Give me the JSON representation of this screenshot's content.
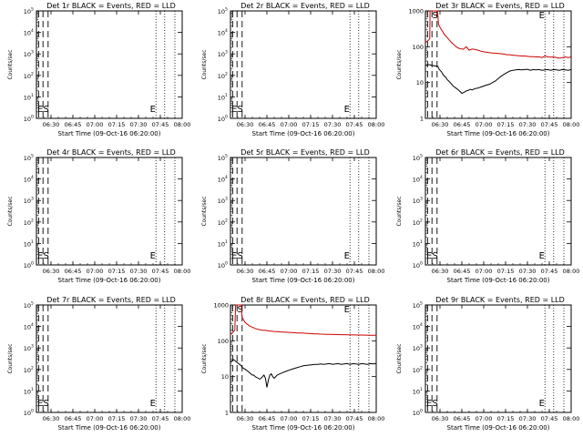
{
  "chart_data": [
    {
      "type": "line",
      "title": "Det 1r BLACK = Events, RED = LLD",
      "ylabel": "Counts/sec",
      "xlabel": "Start Time (09-Oct-16 06:20:00)",
      "log": "exponent",
      "series": []
    },
    {
      "type": "line",
      "title": "Det 2r BLACK = Events, RED = LLD",
      "ylabel": "Counts/sec",
      "xlabel": "Start Time (09-Oct-16 06:20:00)",
      "log": "exponent",
      "series": []
    },
    {
      "type": "line",
      "title": "Det 3r BLACK = Events, RED = LLD",
      "ylabel": "Counts/sec",
      "xlabel": "Start Time (09-Oct-16 06:20:00)",
      "log": "numeric",
      "series": [
        {
          "color": "#000000",
          "x": [
            0,
            1,
            2,
            3,
            8.6,
            9,
            10,
            11,
            12,
            13,
            14,
            15,
            16,
            17,
            18,
            19,
            20,
            21,
            22,
            23,
            24,
            25,
            26,
            27,
            28,
            29,
            30,
            31,
            32,
            34,
            36,
            38,
            40,
            42,
            44,
            46,
            48,
            50,
            52,
            54,
            56,
            58,
            60,
            62,
            64,
            66,
            68,
            70,
            72,
            74,
            76,
            78,
            80,
            82,
            84,
            86,
            88,
            90,
            92,
            94,
            96,
            98,
            100
          ],
          "y": [
            30,
            31,
            32,
            31,
            28,
            25,
            22,
            20,
            17,
            15,
            14,
            12,
            11,
            10,
            9,
            8,
            7.5,
            7,
            6.5,
            6,
            5.5,
            5,
            5.2,
            5.5,
            5.8,
            6,
            6.2,
            6.5,
            6.2,
            6.8,
            7,
            7.5,
            8,
            8.5,
            9,
            10,
            11,
            13,
            15,
            17,
            19,
            21,
            22,
            22.5,
            23,
            22.5,
            23,
            23.5,
            22,
            23,
            22.5,
            23,
            22,
            22.5,
            23,
            22,
            23,
            22.5,
            22,
            23,
            22.5,
            22,
            23
          ]
        },
        {
          "color": "#cc0000",
          "x": [
            0,
            1,
            2,
            3,
            3.2,
            8.3,
            9,
            10,
            11,
            12,
            13,
            14,
            15,
            16,
            17,
            18,
            19,
            20,
            21,
            22,
            23,
            24,
            26,
            28,
            30,
            32,
            34,
            36,
            38,
            40,
            42,
            44,
            46,
            48,
            50,
            52,
            54,
            56,
            58,
            60,
            62,
            64,
            66,
            68,
            70,
            72,
            74,
            76,
            78,
            80,
            82,
            84,
            86,
            88,
            90,
            92,
            94,
            96,
            98,
            100
          ],
          "y": [
            130,
            140,
            150,
            170,
            1000,
            1000,
            420,
            350,
            300,
            260,
            220,
            200,
            180,
            160,
            145,
            130,
            120,
            110,
            100,
            95,
            90,
            88,
            85,
            100,
            80,
            86,
            84,
            80,
            75,
            72,
            70,
            68,
            67,
            66,
            65,
            64,
            62,
            60,
            60,
            58,
            57,
            56,
            55,
            55,
            54,
            53,
            53,
            52,
            52,
            50,
            55,
            52,
            51,
            52,
            50,
            48,
            50,
            52,
            50,
            52
          ]
        }
      ]
    },
    {
      "type": "line",
      "title": "Det 4r BLACK = Events, RED = LLD",
      "ylabel": "Counts/sec",
      "xlabel": "Start Time (09-Oct-16 06:20:00)",
      "log": "exponent",
      "series": []
    },
    {
      "type": "line",
      "title": "Det 5r BLACK = Events, RED = LLD",
      "ylabel": "Counts/sec",
      "xlabel": "Start Time (09-Oct-16 06:20:00)",
      "log": "exponent",
      "series": []
    },
    {
      "type": "line",
      "title": "Det 6r BLACK = Events, RED = LLD",
      "ylabel": "Counts/sec",
      "xlabel": "Start Time (09-Oct-16 06:20:00)",
      "log": "exponent",
      "series": []
    },
    {
      "type": "line",
      "title": "Det 7r BLACK = Events, RED = LLD",
      "ylabel": "Counts/sec",
      "xlabel": "Start Time (09-Oct-16 06:20:00)",
      "log": "exponent",
      "series": []
    },
    {
      "type": "line",
      "title": "Det 8r BLACK = Events, RED = LLD",
      "ylabel": "Counts/sec",
      "xlabel": "Start Time (09-Oct-16 06:20:00)",
      "log": "numeric",
      "series": [
        {
          "color": "#000000",
          "x": [
            0,
            1,
            2,
            3,
            7.5,
            8,
            9,
            10,
            11,
            12,
            13,
            14,
            15,
            16,
            17,
            18,
            19,
            20,
            21,
            22,
            23,
            24,
            25,
            26,
            27,
            28,
            29,
            30,
            32,
            34,
            36,
            38,
            40,
            42,
            44,
            46,
            48,
            50,
            52,
            54,
            56,
            58,
            60,
            62,
            64,
            66,
            68,
            70,
            72,
            74,
            76,
            78,
            80,
            82,
            84,
            86,
            88,
            90,
            92,
            94,
            96,
            98,
            100
          ],
          "y": [
            25,
            27,
            30,
            28,
            20,
            18,
            17,
            16,
            15,
            14,
            13,
            12,
            11,
            11,
            10,
            9.5,
            9,
            8.5,
            9,
            10,
            11,
            9,
            5,
            8,
            11,
            12,
            10,
            9,
            11,
            12,
            13,
            14,
            15,
            16,
            17,
            18,
            19,
            20,
            20.5,
            21,
            21.5,
            22,
            22,
            22.5,
            22,
            22.5,
            23,
            22,
            22.5,
            23,
            22,
            22.5,
            23,
            22,
            23,
            22.5,
            22,
            23,
            22.5,
            22,
            23,
            22.5,
            23
          ]
        },
        {
          "color": "#cc0000",
          "x": [
            0,
            1,
            2,
            3,
            3.5,
            7.5,
            8,
            9,
            10,
            11,
            12,
            13,
            14,
            15,
            16,
            17,
            18,
            19,
            20,
            21,
            22,
            23,
            24,
            26,
            28,
            30,
            32,
            34,
            36,
            38,
            40,
            42,
            44,
            46,
            48,
            50,
            52,
            54,
            56,
            58,
            60,
            62,
            64,
            66,
            68,
            70,
            72,
            74,
            76,
            78,
            80,
            82,
            84,
            86,
            88,
            90,
            92,
            94,
            96,
            98,
            100
          ],
          "y": [
            150,
            160,
            180,
            200,
            1000,
            1000,
            450,
            380,
            330,
            300,
            280,
            260,
            250,
            240,
            230,
            220,
            215,
            210,
            205,
            200,
            198,
            196,
            195,
            190,
            185,
            182,
            180,
            178,
            176,
            174,
            172,
            170,
            168,
            166,
            165,
            164,
            162,
            160,
            158,
            156,
            155,
            154,
            153,
            152,
            151,
            150,
            150,
            149,
            148,
            148,
            147,
            147,
            146,
            146,
            145,
            145,
            144,
            144,
            143,
            143,
            143
          ]
        }
      ]
    },
    {
      "type": "line",
      "title": "Det 9r BLACK = Events, RED = LLD",
      "ylabel": "Counts/sec",
      "xlabel": "Start Time (09-Oct-16 06:20:00)",
      "log": "exponent",
      "series": []
    }
  ],
  "shared": {
    "xticks": [
      "06:30",
      "06:45",
      "07:00",
      "07:15",
      "07:30",
      "07:45",
      "08:00"
    ],
    "xtick_minutes": [
      10,
      25,
      40,
      55,
      70,
      85,
      100
    ],
    "x_range_minutes": [
      0,
      100
    ],
    "event_lines_minutes": {
      "dash": [
        1.5,
        4.5,
        8.0
      ],
      "dot": [
        82,
        88,
        95
      ]
    },
    "s_marker_minute": 4.7,
    "e_marker_minute": 82.5,
    "markers": {
      "s": "S",
      "e": "E",
      "left": "E"
    },
    "exponent_ticks": [
      "10",
      "10",
      "10",
      "10",
      "10",
      "10"
    ],
    "exponent_sups": [
      "0",
      "1",
      "2",
      "3",
      "4",
      "5"
    ],
    "numeric_ticks": [
      "1",
      "10",
      "100",
      "1000"
    ],
    "numeric_decades": [
      0,
      1,
      2,
      3
    ]
  }
}
